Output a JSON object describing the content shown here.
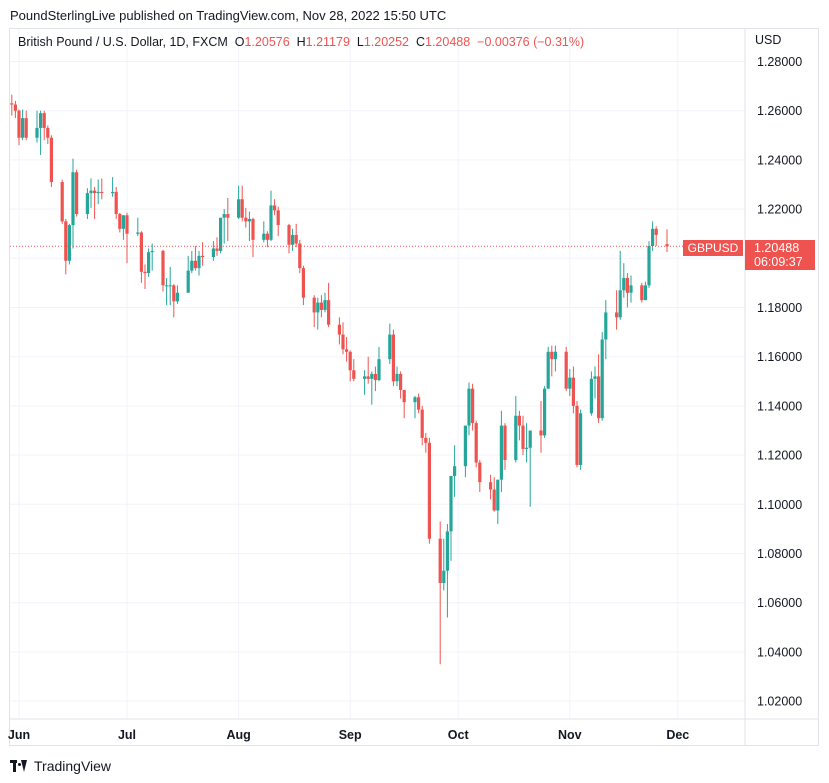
{
  "header": {
    "published": "PoundSterlingLive published on TradingView.com, Nov 28, 2022 15:50 UTC"
  },
  "legend": {
    "symbol": "British Pound / U.S. Dollar, 1D, FXCM",
    "o_label": "O",
    "o_value": "1.20576",
    "h_label": "H",
    "h_value": "1.21179",
    "l_label": "L",
    "l_value": "1.20252",
    "c_label": "C",
    "c_value": "1.20488",
    "change": "−0.00376 (−0.31%)"
  },
  "axis": {
    "currency": "USD"
  },
  "last_price": {
    "symbol": "GBPUSD",
    "price": "1.20488",
    "countdown": "06:09:37"
  },
  "brand": {
    "name": "TradingView"
  },
  "colors": {
    "up": "#26a69a",
    "down": "#ef5350",
    "grid": "#f0f3fa"
  },
  "chart_data": {
    "type": "candlestick",
    "price_ticks": [
      "1.28000",
      "1.26000",
      "1.24000",
      "1.22000",
      "1.20000",
      "1.18000",
      "1.16000",
      "1.14000",
      "1.12000",
      "1.10000",
      "1.08000",
      "1.06000",
      "1.04000",
      "1.02000"
    ],
    "ylim": [
      1.014,
      1.284
    ],
    "time_ticks": [
      {
        "label": "Jun",
        "date": "2022-06-01"
      },
      {
        "label": "Jul",
        "date": "2022-07-01"
      },
      {
        "label": "Aug",
        "date": "2022-08-01"
      },
      {
        "label": "Sep",
        "date": "2022-09-01"
      },
      {
        "label": "Oct",
        "date": "2022-10-01"
      },
      {
        "label": "Nov",
        "date": "2022-11-01"
      },
      {
        "label": "Dec",
        "date": "2022-12-01"
      }
    ],
    "candles": [
      {
        "d": "2022-05-30",
        "o": 1.263,
        "h": 1.2665,
        "l": 1.258,
        "c": 1.2625
      },
      {
        "d": "2022-05-31",
        "o": 1.2625,
        "h": 1.264,
        "l": 1.257,
        "c": 1.26
      },
      {
        "d": "2022-06-01",
        "o": 1.26,
        "h": 1.2605,
        "l": 1.246,
        "c": 1.249
      },
      {
        "d": "2022-06-02",
        "o": 1.249,
        "h": 1.2605,
        "l": 1.248,
        "c": 1.257
      },
      {
        "d": "2022-06-03",
        "o": 1.257,
        "h": 1.26,
        "l": 1.248,
        "c": 1.249
      },
      {
        "d": "2022-06-06",
        "o": 1.249,
        "h": 1.26,
        "l": 1.247,
        "c": 1.253
      },
      {
        "d": "2022-06-07",
        "o": 1.253,
        "h": 1.26,
        "l": 1.242,
        "c": 1.259
      },
      {
        "d": "2022-06-08",
        "o": 1.259,
        "h": 1.26,
        "l": 1.248,
        "c": 1.253
      },
      {
        "d": "2022-06-09",
        "o": 1.253,
        "h": 1.254,
        "l": 1.2465,
        "c": 1.249
      },
      {
        "d": "2022-06-10",
        "o": 1.249,
        "h": 1.25,
        "l": 1.229,
        "c": 1.231
      },
      {
        "d": "2022-06-13",
        "o": 1.231,
        "h": 1.232,
        "l": 1.214,
        "c": 1.215
      },
      {
        "d": "2022-06-14",
        "o": 1.215,
        "h": 1.216,
        "l": 1.1935,
        "c": 1.199
      },
      {
        "d": "2022-06-15",
        "o": 1.199,
        "h": 1.214,
        "l": 1.1975,
        "c": 1.2135
      },
      {
        "d": "2022-06-16",
        "o": 1.2135,
        "h": 1.2405,
        "l": 1.204,
        "c": 1.235
      },
      {
        "d": "2022-06-17",
        "o": 1.235,
        "h": 1.236,
        "l": 1.217,
        "c": 1.218
      },
      {
        "d": "2022-06-20",
        "o": 1.218,
        "h": 1.2285,
        "l": 1.216,
        "c": 1.2265
      },
      {
        "d": "2022-06-21",
        "o": 1.2265,
        "h": 1.2325,
        "l": 1.2205,
        "c": 1.2275
      },
      {
        "d": "2022-06-22",
        "o": 1.2275,
        "h": 1.229,
        "l": 1.216,
        "c": 1.2265
      },
      {
        "d": "2022-06-23",
        "o": 1.2265,
        "h": 1.232,
        "l": 1.222,
        "c": 1.227
      },
      {
        "d": "2022-06-24",
        "o": 1.227,
        "h": 1.2325,
        "l": 1.224,
        "c": 1.2265
      },
      {
        "d": "2022-06-27",
        "o": 1.2265,
        "h": 1.233,
        "l": 1.225,
        "c": 1.227
      },
      {
        "d": "2022-06-28",
        "o": 1.227,
        "h": 1.229,
        "l": 1.216,
        "c": 1.218
      },
      {
        "d": "2022-06-29",
        "o": 1.218,
        "h": 1.2185,
        "l": 1.2105,
        "c": 1.212
      },
      {
        "d": "2022-06-30",
        "o": 1.212,
        "h": 1.2175,
        "l": 1.2075,
        "c": 1.2175
      },
      {
        "d": "2022-07-01",
        "o": 1.2175,
        "h": 1.2185,
        "l": 1.198,
        "c": 1.21
      },
      {
        "d": "2022-07-04",
        "o": 1.21,
        "h": 1.2165,
        "l": 1.209,
        "c": 1.2105
      },
      {
        "d": "2022-07-05",
        "o": 1.2105,
        "h": 1.211,
        "l": 1.19,
        "c": 1.1945
      },
      {
        "d": "2022-07-06",
        "o": 1.1945,
        "h": 1.1975,
        "l": 1.1875,
        "c": 1.194
      },
      {
        "d": "2022-07-07",
        "o": 1.194,
        "h": 1.204,
        "l": 1.1925,
        "c": 1.2025
      },
      {
        "d": "2022-07-08",
        "o": 1.2025,
        "h": 1.206,
        "l": 1.195,
        "c": 1.203
      },
      {
        "d": "2022-07-11",
        "o": 1.203,
        "h": 1.2035,
        "l": 1.1865,
        "c": 1.189
      },
      {
        "d": "2022-07-12",
        "o": 1.189,
        "h": 1.192,
        "l": 1.181,
        "c": 1.189
      },
      {
        "d": "2022-07-13",
        "o": 1.189,
        "h": 1.1965,
        "l": 1.181,
        "c": 1.189
      },
      {
        "d": "2022-07-14",
        "o": 1.189,
        "h": 1.1895,
        "l": 1.176,
        "c": 1.1825
      },
      {
        "d": "2022-07-15",
        "o": 1.1825,
        "h": 1.189,
        "l": 1.1815,
        "c": 1.186
      },
      {
        "d": "2022-07-18",
        "o": 1.186,
        "h": 1.201,
        "l": 1.186,
        "c": 1.195
      },
      {
        "d": "2022-07-19",
        "o": 1.195,
        "h": 1.203,
        "l": 1.194,
        "c": 1.199
      },
      {
        "d": "2022-07-20",
        "o": 1.199,
        "h": 1.205,
        "l": 1.195,
        "c": 1.196
      },
      {
        "d": "2022-07-21",
        "o": 1.196,
        "h": 1.203,
        "l": 1.193,
        "c": 1.201
      },
      {
        "d": "2022-07-22",
        "o": 1.201,
        "h": 1.2065,
        "l": 1.197,
        "c": 1.2005
      },
      {
        "d": "2022-07-25",
        "o": 1.2005,
        "h": 1.207,
        "l": 1.199,
        "c": 1.204
      },
      {
        "d": "2022-07-26",
        "o": 1.204,
        "h": 1.2085,
        "l": 1.201,
        "c": 1.203
      },
      {
        "d": "2022-07-27",
        "o": 1.203,
        "h": 1.216,
        "l": 1.202,
        "c": 1.2165
      },
      {
        "d": "2022-07-28",
        "o": 1.2165,
        "h": 1.22,
        "l": 1.206,
        "c": 1.218
      },
      {
        "d": "2022-07-29",
        "o": 1.218,
        "h": 1.2245,
        "l": 1.207,
        "c": 1.2165
      },
      {
        "d": "2022-08-01",
        "o": 1.2165,
        "h": 1.2295,
        "l": 1.216,
        "c": 1.224
      },
      {
        "d": "2022-08-02",
        "o": 1.224,
        "h": 1.2295,
        "l": 1.215,
        "c": 1.2165
      },
      {
        "d": "2022-08-03",
        "o": 1.2165,
        "h": 1.2205,
        "l": 1.2125,
        "c": 1.215
      },
      {
        "d": "2022-08-04",
        "o": 1.215,
        "h": 1.219,
        "l": 1.207,
        "c": 1.216
      },
      {
        "d": "2022-08-05",
        "o": 1.216,
        "h": 1.2165,
        "l": 1.2005,
        "c": 1.2075
      },
      {
        "d": "2022-08-08",
        "o": 1.2075,
        "h": 1.215,
        "l": 1.2065,
        "c": 1.21
      },
      {
        "d": "2022-08-09",
        "o": 1.21,
        "h": 1.211,
        "l": 1.2045,
        "c": 1.2075
      },
      {
        "d": "2022-08-10",
        "o": 1.2075,
        "h": 1.2275,
        "l": 1.207,
        "c": 1.2215
      },
      {
        "d": "2022-08-11",
        "o": 1.2215,
        "h": 1.224,
        "l": 1.2175,
        "c": 1.2195
      },
      {
        "d": "2022-08-12",
        "o": 1.2195,
        "h": 1.221,
        "l": 1.209,
        "c": 1.2135
      },
      {
        "d": "2022-08-15",
        "o": 1.2135,
        "h": 1.214,
        "l": 1.202,
        "c": 1.2055
      },
      {
        "d": "2022-08-16",
        "o": 1.2055,
        "h": 1.212,
        "l": 1.203,
        "c": 1.2095
      },
      {
        "d": "2022-08-17",
        "o": 1.2095,
        "h": 1.214,
        "l": 1.2045,
        "c": 1.206
      },
      {
        "d": "2022-08-18",
        "o": 1.206,
        "h": 1.2075,
        "l": 1.194,
        "c": 1.196
      },
      {
        "d": "2022-08-19",
        "o": 1.196,
        "h": 1.197,
        "l": 1.181,
        "c": 1.184
      },
      {
        "d": "2022-08-22",
        "o": 1.184,
        "h": 1.185,
        "l": 1.172,
        "c": 1.178
      },
      {
        "d": "2022-08-23",
        "o": 1.178,
        "h": 1.184,
        "l": 1.171,
        "c": 1.182
      },
      {
        "d": "2022-08-24",
        "o": 1.182,
        "h": 1.185,
        "l": 1.176,
        "c": 1.179
      },
      {
        "d": "2022-08-25",
        "o": 1.179,
        "h": 1.186,
        "l": 1.178,
        "c": 1.183
      },
      {
        "d": "2022-08-26",
        "o": 1.183,
        "h": 1.19,
        "l": 1.172,
        "c": 1.173
      },
      {
        "d": "2022-08-29",
        "o": 1.173,
        "h": 1.176,
        "l": 1.165,
        "c": 1.169
      },
      {
        "d": "2022-08-30",
        "o": 1.169,
        "h": 1.174,
        "l": 1.161,
        "c": 1.163
      },
      {
        "d": "2022-08-31",
        "o": 1.163,
        "h": 1.168,
        "l": 1.158,
        "c": 1.162
      },
      {
        "d": "2022-09-01",
        "o": 1.162,
        "h": 1.1625,
        "l": 1.15,
        "c": 1.1545
      },
      {
        "d": "2022-09-02",
        "o": 1.1545,
        "h": 1.159,
        "l": 1.15,
        "c": 1.151
      },
      {
        "d": "2022-09-05",
        "o": 1.151,
        "h": 1.1545,
        "l": 1.1445,
        "c": 1.152
      },
      {
        "d": "2022-09-06",
        "o": 1.152,
        "h": 1.16,
        "l": 1.149,
        "c": 1.151
      },
      {
        "d": "2022-09-07",
        "o": 1.151,
        "h": 1.154,
        "l": 1.1405,
        "c": 1.153
      },
      {
        "d": "2022-09-08",
        "o": 1.153,
        "h": 1.156,
        "l": 1.146,
        "c": 1.1505
      },
      {
        "d": "2022-09-09",
        "o": 1.1505,
        "h": 1.164,
        "l": 1.15,
        "c": 1.159
      },
      {
        "d": "2022-09-12",
        "o": 1.159,
        "h": 1.1735,
        "l": 1.157,
        "c": 1.169
      },
      {
        "d": "2022-09-13",
        "o": 1.169,
        "h": 1.171,
        "l": 1.148,
        "c": 1.15
      },
      {
        "d": "2022-09-14",
        "o": 1.15,
        "h": 1.156,
        "l": 1.148,
        "c": 1.153
      },
      {
        "d": "2022-09-15",
        "o": 1.153,
        "h": 1.154,
        "l": 1.143,
        "c": 1.1465
      },
      {
        "d": "2022-09-16",
        "o": 1.1465,
        "h": 1.146,
        "l": 1.135,
        "c": 1.1415
      },
      {
        "d": "2022-09-19",
        "o": 1.1415,
        "h": 1.144,
        "l": 1.135,
        "c": 1.1435
      },
      {
        "d": "2022-09-20",
        "o": 1.1435,
        "h": 1.145,
        "l": 1.137,
        "c": 1.1385
      },
      {
        "d": "2022-09-21",
        "o": 1.1385,
        "h": 1.14,
        "l": 1.124,
        "c": 1.127
      },
      {
        "d": "2022-09-22",
        "o": 1.127,
        "h": 1.129,
        "l": 1.121,
        "c": 1.125
      },
      {
        "d": "2022-09-23",
        "o": 1.125,
        "h": 1.127,
        "l": 1.084,
        "c": 1.086
      },
      {
        "d": "2022-09-26",
        "o": 1.086,
        "h": 1.093,
        "l": 1.035,
        "c": 1.068
      },
      {
        "d": "2022-09-27",
        "o": 1.068,
        "h": 1.086,
        "l": 1.065,
        "c": 1.073
      },
      {
        "d": "2022-09-28",
        "o": 1.073,
        "h": 1.092,
        "l": 1.054,
        "c": 1.089
      },
      {
        "d": "2022-09-29",
        "o": 1.089,
        "h": 1.11,
        "l": 1.077,
        "c": 1.1115
      },
      {
        "d": "2022-09-30",
        "o": 1.1115,
        "h": 1.124,
        "l": 1.103,
        "c": 1.1155
      },
      {
        "d": "2022-10-03",
        "o": 1.1155,
        "h": 1.132,
        "l": 1.111,
        "c": 1.132
      },
      {
        "d": "2022-10-04",
        "o": 1.132,
        "h": 1.1495,
        "l": 1.128,
        "c": 1.147
      },
      {
        "d": "2022-10-05",
        "o": 1.147,
        "h": 1.149,
        "l": 1.13,
        "c": 1.133
      },
      {
        "d": "2022-10-06",
        "o": 1.133,
        "h": 1.134,
        "l": 1.115,
        "c": 1.117
      },
      {
        "d": "2022-10-07",
        "o": 1.117,
        "h": 1.118,
        "l": 1.105,
        "c": 1.109
      },
      {
        "d": "2022-10-10",
        "o": 1.109,
        "h": 1.112,
        "l": 1.102,
        "c": 1.106
      },
      {
        "d": "2022-10-11",
        "o": 1.106,
        "h": 1.111,
        "l": 1.097,
        "c": 1.0975
      },
      {
        "d": "2022-10-12",
        "o": 1.0975,
        "h": 1.11,
        "l": 1.092,
        "c": 1.11
      },
      {
        "d": "2022-10-13",
        "o": 1.11,
        "h": 1.138,
        "l": 1.105,
        "c": 1.132
      },
      {
        "d": "2022-10-14",
        "o": 1.132,
        "h": 1.133,
        "l": 1.114,
        "c": 1.118
      },
      {
        "d": "2022-10-17",
        "o": 1.118,
        "h": 1.144,
        "l": 1.117,
        "c": 1.136
      },
      {
        "d": "2022-10-18",
        "o": 1.136,
        "h": 1.138,
        "l": 1.126,
        "c": 1.132
      },
      {
        "d": "2022-10-19",
        "o": 1.132,
        "h": 1.136,
        "l": 1.12,
        "c": 1.1225
      },
      {
        "d": "2022-10-20",
        "o": 1.1225,
        "h": 1.133,
        "l": 1.117,
        "c": 1.123
      },
      {
        "d": "2022-10-21",
        "o": 1.123,
        "h": 1.13,
        "l": 1.099,
        "c": 1.13
      },
      {
        "d": "2022-10-24",
        "o": 1.13,
        "h": 1.142,
        "l": 1.121,
        "c": 1.128
      },
      {
        "d": "2022-10-25",
        "o": 1.128,
        "h": 1.148,
        "l": 1.127,
        "c": 1.147
      },
      {
        "d": "2022-10-26",
        "o": 1.147,
        "h": 1.164,
        "l": 1.147,
        "c": 1.162
      },
      {
        "d": "2022-10-27",
        "o": 1.162,
        "h": 1.1645,
        "l": 1.152,
        "c": 1.159
      },
      {
        "d": "2022-10-28",
        "o": 1.159,
        "h": 1.1645,
        "l": 1.154,
        "c": 1.162
      },
      {
        "d": "2022-10-31",
        "o": 1.162,
        "h": 1.164,
        "l": 1.146,
        "c": 1.147
      },
      {
        "d": "2022-11-01",
        "o": 1.147,
        "h": 1.155,
        "l": 1.144,
        "c": 1.1515
      },
      {
        "d": "2022-11-02",
        "o": 1.1515,
        "h": 1.156,
        "l": 1.137,
        "c": 1.14
      },
      {
        "d": "2022-11-03",
        "o": 1.14,
        "h": 1.142,
        "l": 1.115,
        "c": 1.116
      },
      {
        "d": "2022-11-04",
        "o": 1.116,
        "h": 1.1385,
        "l": 1.114,
        "c": 1.137
      },
      {
        "d": "2022-11-07",
        "o": 1.137,
        "h": 1.154,
        "l": 1.136,
        "c": 1.151
      },
      {
        "d": "2022-11-08",
        "o": 1.151,
        "h": 1.156,
        "l": 1.143,
        "c": 1.152
      },
      {
        "d": "2022-11-09",
        "o": 1.152,
        "h": 1.161,
        "l": 1.133,
        "c": 1.135
      },
      {
        "d": "2022-11-10",
        "o": 1.135,
        "h": 1.17,
        "l": 1.134,
        "c": 1.167
      },
      {
        "d": "2022-11-11",
        "o": 1.167,
        "h": 1.183,
        "l": 1.159,
        "c": 1.178
      },
      {
        "d": "2022-11-14",
        "o": 1.178,
        "h": 1.187,
        "l": 1.171,
        "c": 1.176
      },
      {
        "d": "2022-11-15",
        "o": 1.176,
        "h": 1.203,
        "l": 1.175,
        "c": 1.187
      },
      {
        "d": "2022-11-16",
        "o": 1.187,
        "h": 1.198,
        "l": 1.184,
        "c": 1.192
      },
      {
        "d": "2022-11-17",
        "o": 1.192,
        "h": 1.194,
        "l": 1.18,
        "c": 1.186
      },
      {
        "d": "2022-11-18",
        "o": 1.186,
        "h": 1.193,
        "l": 1.182,
        "c": 1.189
      },
      {
        "d": "2022-11-21",
        "o": 1.189,
        "h": 1.19,
        "l": 1.182,
        "c": 1.183
      },
      {
        "d": "2022-11-22",
        "o": 1.183,
        "h": 1.1905,
        "l": 1.183,
        "c": 1.189
      },
      {
        "d": "2022-11-23",
        "o": 1.189,
        "h": 1.207,
        "l": 1.188,
        "c": 1.205
      },
      {
        "d": "2022-11-24",
        "o": 1.205,
        "h": 1.215,
        "l": 1.203,
        "c": 1.212
      },
      {
        "d": "2022-11-25",
        "o": 1.212,
        "h": 1.213,
        "l": 1.205,
        "c": 1.2095
      },
      {
        "d": "2022-11-28",
        "o": 1.20576,
        "h": 1.21179,
        "l": 1.20252,
        "c": 1.20488
      }
    ]
  }
}
